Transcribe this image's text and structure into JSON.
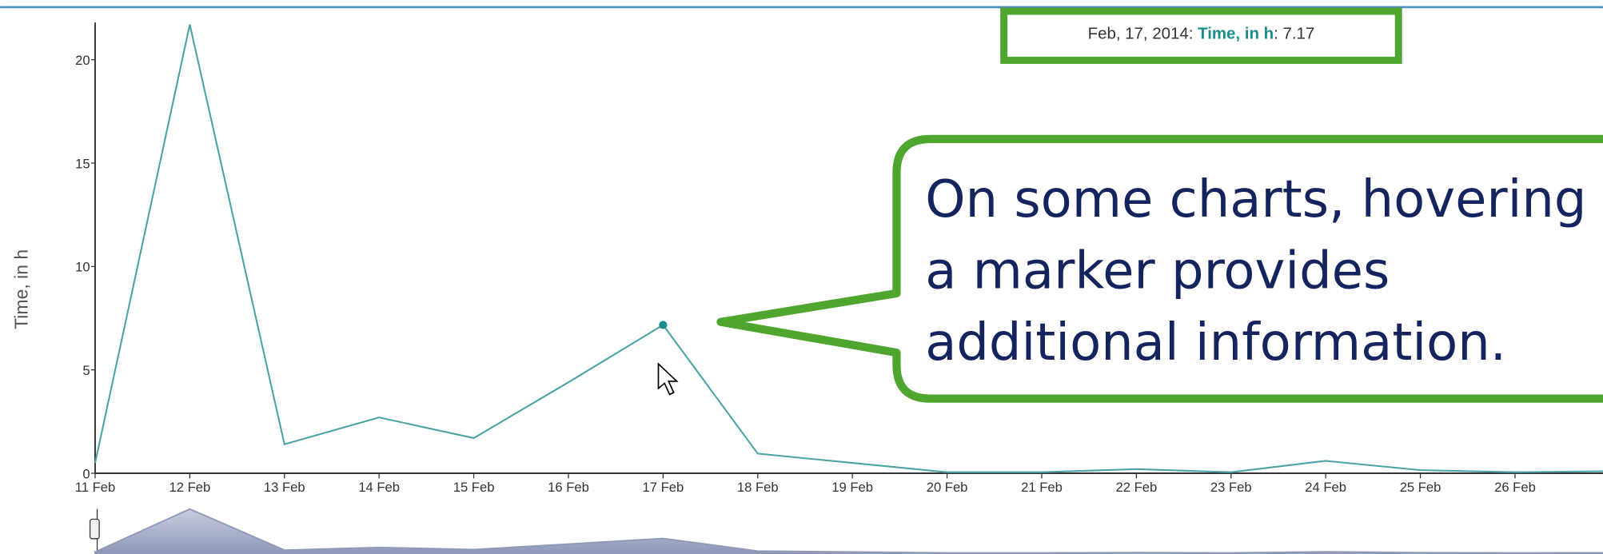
{
  "chart_data": {
    "type": "line",
    "y_label": "Time, in h",
    "categories": [
      "11 Feb",
      "12 Feb",
      "13 Feb",
      "14 Feb",
      "15 Feb",
      "16 Feb",
      "17 Feb",
      "18 Feb",
      "19 Feb",
      "20 Feb",
      "21 Feb",
      "22 Feb",
      "23 Feb",
      "24 Feb",
      "25 Feb",
      "26 Feb",
      null
    ],
    "series": [
      {
        "name": "Time, in h",
        "color": "#4aa3a3",
        "values": [
          0.5,
          21.7,
          1.4,
          2.7,
          1.7,
          4.4,
          7.17,
          0.95,
          0.5,
          0.05,
          0.05,
          0.2,
          0.05,
          0.6,
          0.15,
          0.05,
          0.1
        ]
      }
    ],
    "ylim": [
      0,
      21.8
    ],
    "yticks": [
      0,
      5,
      10,
      15,
      20
    ],
    "tooltip": {
      "date": "Feb, 17, 2014: ",
      "series": "Time, in h",
      "sep": ": ",
      "value": "7.17"
    },
    "callout": [
      "On some charts, hovering",
      "a marker provides",
      "additional information."
    ]
  }
}
